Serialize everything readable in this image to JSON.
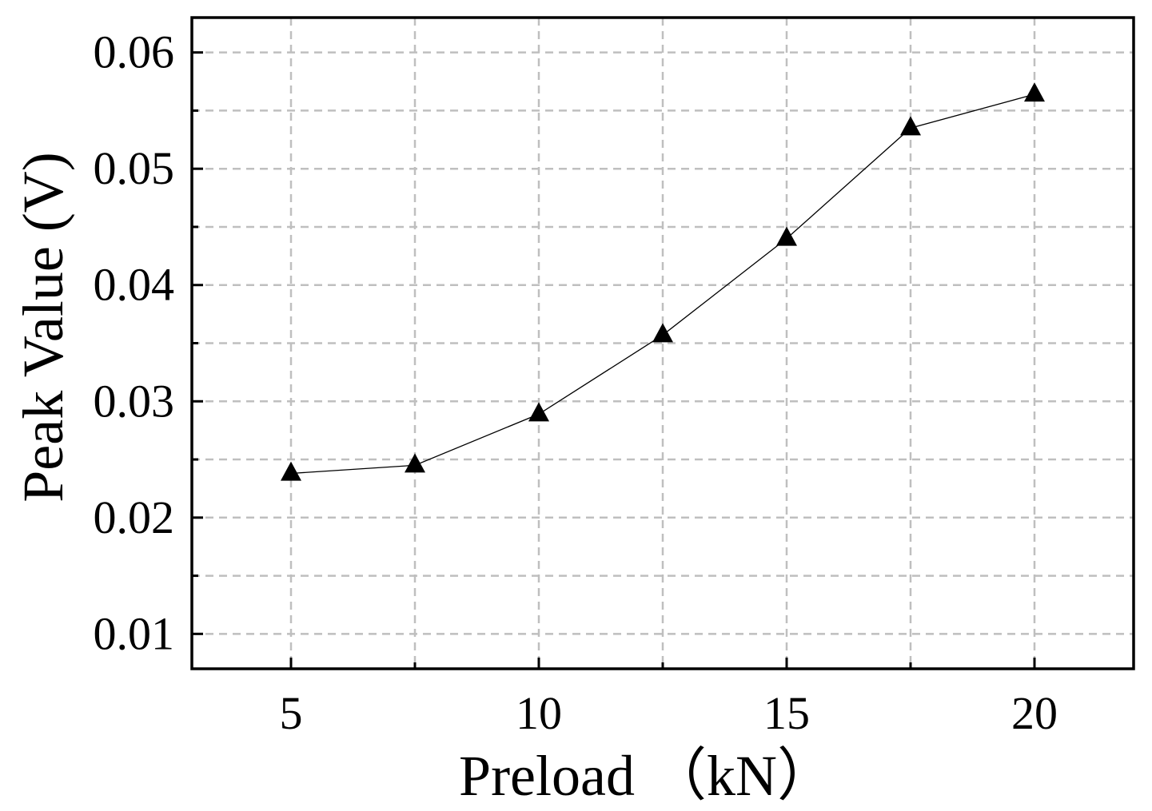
{
  "chart_data": {
    "type": "line",
    "xlabel": "Preload （kN）",
    "ylabel": "Peak Value (V)",
    "xlim": [
      3,
      22
    ],
    "ylim": [
      0.007,
      0.063
    ],
    "x_ticks": [
      5,
      10,
      15,
      20
    ],
    "x_tick_labels": [
      "5",
      "10",
      "15",
      "20"
    ],
    "x_minor_ticks": [
      7.5,
      12.5,
      17.5
    ],
    "y_ticks": [
      0.01,
      0.02,
      0.03,
      0.04,
      0.05,
      0.06
    ],
    "y_tick_labels": [
      "0.01",
      "0.02",
      "0.03",
      "0.04",
      "0.05",
      "0.06"
    ],
    "y_minor_ticks": [
      0.015,
      0.025,
      0.035,
      0.045,
      0.055
    ],
    "grid": true,
    "marker": "triangle",
    "series": [
      {
        "x": [
          5,
          7.5,
          10,
          12.5,
          15,
          17.5,
          20
        ],
        "y": [
          0.0238,
          0.0245,
          0.0289,
          0.0357,
          0.044,
          0.0535,
          0.0564
        ]
      }
    ],
    "colors": {
      "line": "#000000",
      "marker": "#000000",
      "grid": "#bfbfbf",
      "axes": "#000000"
    }
  }
}
